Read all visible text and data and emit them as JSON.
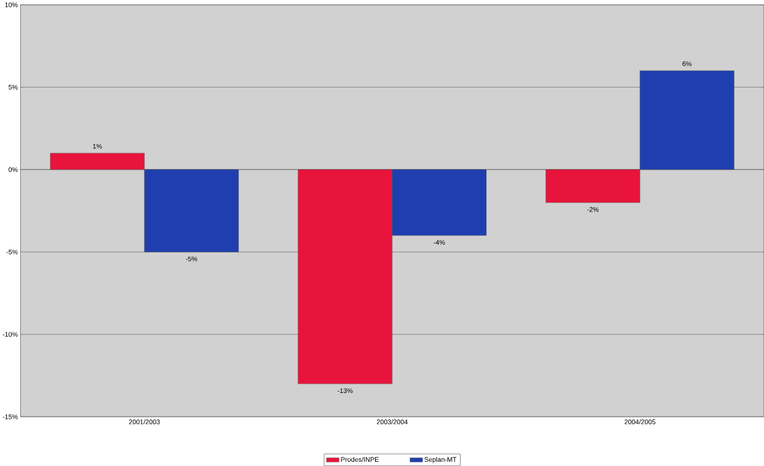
{
  "chart_data": {
    "type": "bar",
    "categories": [
      "2001/2003",
      "2003/2004",
      "2004/2005"
    ],
    "series": [
      {
        "name": "Prodes/INPE",
        "color": "#e8143c",
        "values": [
          1,
          -13,
          -2
        ],
        "value_labels": [
          "1%",
          "-13%",
          "-2%"
        ]
      },
      {
        "name": "Seplan-MT",
        "color": "#1f3fb0",
        "values": [
          -5,
          -4,
          6
        ],
        "value_labels": [
          "-5%",
          "-4%",
          "6%"
        ]
      }
    ],
    "ylim": [
      -15,
      10
    ],
    "yticks": [
      {
        "value": -15,
        "label": "-15%"
      },
      {
        "value": -10,
        "label": "-10%"
      },
      {
        "value": -5,
        "label": "-5%"
      },
      {
        "value": 0,
        "label": "0%"
      },
      {
        "value": 5,
        "label": "5%"
      },
      {
        "value": 10,
        "label": "10%"
      }
    ],
    "grid": "y",
    "legend": "bottom"
  }
}
